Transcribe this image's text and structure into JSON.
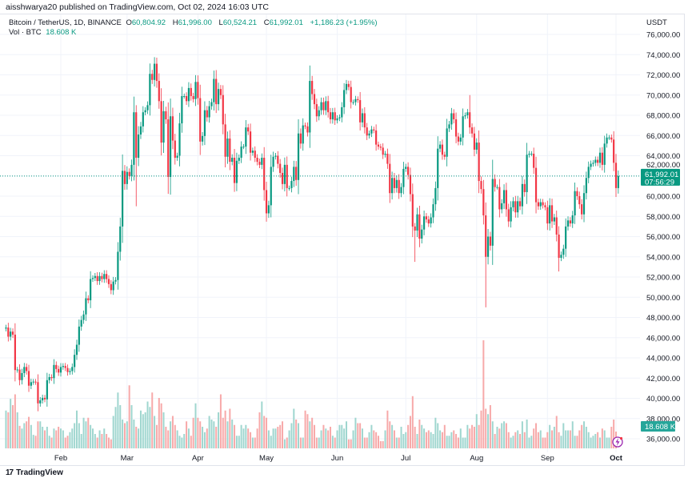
{
  "publisher_line": "aisshwarya20 published on TradingView.com, Oct 02, 2024 16:03 UTC",
  "legend": {
    "symbol": "Bitcoin / TetherUS, 1D, BINANCE",
    "open_label": "O",
    "open": "60,804.92",
    "high_label": "H",
    "high": "61,996.00",
    "low_label": "L",
    "low": "60,524.21",
    "close_label": "C",
    "close": "61,992.01",
    "change": "+1,186.23 (+1.95%)",
    "vol_label": "Vol · BTC",
    "vol": "18.608 K"
  },
  "brand": "TradingView",
  "colors": {
    "up": "#089981",
    "down": "#f23645",
    "up_vol": "#9fd6cf",
    "down_vol": "#f7a9a9",
    "grid": "#f0f3fa",
    "price_line": "#089981"
  },
  "chart_data": {
    "type": "candlestick",
    "currency": "USDT",
    "ylim": [
      36000,
      76000
    ],
    "y_ticks": [
      "76,000.00",
      "74,000.00",
      "72,000.00",
      "70,000.00",
      "68,000.00",
      "66,000.00",
      "64,000.00",
      "62,000.00",
      "60,000.00",
      "58,000.00",
      "56,000.00",
      "54,000.00",
      "52,000.00",
      "50,000.00",
      "48,000.00",
      "46,000.00",
      "44,000.00",
      "42,000.00",
      "40,000.00",
      "38,000.00",
      "36,000.00"
    ],
    "y_tick_values": [
      76000,
      74000,
      72000,
      70000,
      68000,
      66000,
      64000,
      62000,
      60000,
      58000,
      56000,
      54000,
      52000,
      50000,
      48000,
      46000,
      44000,
      42000,
      40000,
      38000,
      36000
    ],
    "x_ticks": [
      {
        "label": "Feb",
        "date": "2024-02-01"
      },
      {
        "label": "Mar",
        "date": "2024-03-01"
      },
      {
        "label": "Apr",
        "date": "2024-04-01"
      },
      {
        "label": "May",
        "date": "2024-05-01"
      },
      {
        "label": "Jun",
        "date": "2024-06-01"
      },
      {
        "label": "Jul",
        "date": "2024-07-01"
      },
      {
        "label": "Aug",
        "date": "2024-08-01"
      },
      {
        "label": "Sep",
        "date": "2024-09-01"
      },
      {
        "label": "Oct",
        "date": "2024-10-01"
      }
    ],
    "start_date": "2024-01-08",
    "first_open": 46900,
    "closes": [
      47000,
      46100,
      46600,
      46300,
      42800,
      42850,
      41800,
      42500,
      43100,
      42700,
      41250,
      41600,
      41650,
      41600,
      39500,
      39800,
      40050,
      39900,
      41800,
      42100,
      42000,
      43300,
      42900,
      42550,
      43100,
      43200,
      43000,
      42600,
      42700,
      43100,
      44300,
      45300,
      47100,
      47750,
      48300,
      49900,
      49700,
      51800,
      51900,
      52100,
      51600,
      52100,
      51800,
      52300,
      51800,
      51300,
      50700,
      51550,
      51700,
      54500,
      57000,
      62500,
      61200,
      62400,
      62000,
      63100,
      68300,
      63800,
      66100,
      66900,
      68300,
      68500,
      69000,
      72100,
      71500,
      73100,
      71400,
      69400,
      65300,
      68400,
      67600,
      61900,
      67900,
      65500,
      63800,
      64000,
      67200,
      69900,
      69900,
      69400,
      70700,
      69900,
      69600,
      71300,
      69700,
      65400,
      65950,
      68500,
      67800,
      68900,
      69300,
      71600,
      69100,
      70600,
      70000,
      67100,
      63900,
      65700,
      63400,
      63800,
      61300,
      63500,
      63800,
      64900,
      64900,
      66800,
      66400,
      64300,
      64500,
      63800,
      63400,
      63100,
      63800,
      60600,
      58300,
      59100,
      62900,
      63900,
      64000,
      63200,
      62300,
      61200,
      63100,
      60800,
      60800,
      61500,
      62900,
      61600,
      66200,
      65200,
      67000,
      66900,
      66300,
      71400,
      70100,
      69100,
      67900,
      68500,
      69300,
      68500,
      69400,
      68300,
      67600,
      68300,
      67500,
      67700,
      67800,
      68800,
      70500,
      71100,
      70800,
      69300,
      69300,
      69600,
      69500,
      67300,
      68200,
      66800,
      66000,
      66200,
      66600,
      66500,
      65100,
      64900,
      64800,
      64100,
      64200,
      63200,
      60300,
      61800,
      60800,
      61600,
      60300,
      60900,
      62700,
      62900,
      62100,
      60200,
      57000,
      56600,
      58200,
      55800,
      56700,
      58000,
      57700,
      57300,
      57900,
      59200,
      60800,
      64700,
      65100,
      64100,
      63900,
      66700,
      67100,
      68200,
      67600,
      65900,
      65400,
      65800,
      67900,
      68000,
      68300,
      66800,
      66200,
      64600,
      65300,
      61500,
      60700,
      58100,
      54000,
      56000,
      55100,
      61700,
      60900,
      60900,
      58700,
      59300,
      60600,
      58700,
      57500,
      58900,
      59500,
      58400,
      59500,
      59000,
      61200,
      60400,
      64100,
      64200,
      64200,
      62800,
      59400,
      59000,
      59400,
      59100,
      58900,
      57300,
      59100,
      57500,
      57900,
      56200,
      53900,
      54200,
      54800,
      57000,
      57600,
      57300,
      58100,
      60500,
      60000,
      59200,
      58200,
      60300,
      61800,
      62900,
      63200,
      63300,
      63600,
      63300,
      64300,
      63100,
      65200,
      65800,
      65800,
      65600,
      63300,
      60800,
      61992.01
    ],
    "notable_extremes": [
      {
        "date": "2024-03-05",
        "low": 59000,
        "high": 69000
      },
      {
        "date": "2024-03-14",
        "high": 73700
      },
      {
        "date": "2024-07-05",
        "low": 53500
      },
      {
        "date": "2024-08-05",
        "low": 49000
      },
      {
        "date": "2024-09-06",
        "low": 52550
      },
      {
        "date": "2024-05-21",
        "high": 71900
      },
      {
        "date": "2024-07-29",
        "high": 70000
      }
    ],
    "volume_unit": "K BTC",
    "volumes": [
      42,
      40,
      55,
      48,
      60,
      40,
      25,
      22,
      28,
      30,
      35,
      26,
      15,
      14,
      30,
      30,
      24,
      20,
      24,
      14,
      12,
      22,
      20,
      24,
      22,
      20,
      12,
      14,
      18,
      22,
      28,
      42,
      28,
      16,
      34,
      30,
      34,
      26,
      22,
      16,
      12,
      20,
      16,
      22,
      16,
      12,
      10,
      36,
      46,
      62,
      48,
      32,
      28,
      30,
      70,
      48,
      32,
      24,
      22,
      42,
      38,
      40,
      52,
      46,
      62,
      36,
      26,
      56,
      50,
      40,
      24,
      20,
      30,
      36,
      26,
      20,
      14,
      12,
      16,
      30,
      22,
      14,
      34,
      50,
      34,
      30,
      24,
      18,
      22,
      36,
      32,
      30,
      24,
      40,
      60,
      34,
      42,
      30,
      44,
      32,
      26,
      14,
      14,
      26,
      22,
      26,
      22,
      18,
      12,
      12,
      22,
      40,
      52,
      36,
      34,
      20,
      14,
      22,
      22,
      24,
      26,
      30,
      10,
      12,
      20,
      28,
      44,
      32,
      28,
      12,
      12,
      42,
      38,
      30,
      34,
      26,
      12,
      12,
      20,
      26,
      22,
      20,
      24,
      14,
      12,
      20,
      26,
      26,
      22,
      30,
      10,
      10,
      20,
      34,
      28,
      28,
      22,
      12,
      12,
      18,
      26,
      20,
      18,
      14,
      8,
      8,
      20,
      42,
      30,
      26,
      20,
      12,
      12,
      24,
      16,
      18,
      26,
      36,
      58,
      24,
      16,
      32,
      26,
      22,
      18,
      20,
      18,
      16,
      34,
      28,
      20,
      18,
      26,
      14,
      14,
      18,
      20,
      16,
      12,
      22,
      12,
      12,
      26,
      22,
      26,
      24,
      38,
      26,
      42,
      120,
      44,
      38,
      48,
      30,
      16,
      24,
      22,
      28,
      30,
      28,
      18,
      12,
      14,
      18,
      20,
      16,
      30,
      18,
      32,
      12,
      14,
      22,
      28,
      18,
      20,
      12,
      12,
      18,
      26,
      20,
      24,
      36,
      18,
      14,
      28,
      20,
      20,
      20,
      30,
      14,
      14,
      20,
      26,
      30,
      24,
      18,
      12,
      14,
      16,
      18,
      12,
      22,
      20,
      12,
      12,
      24,
      32,
      18.608
    ],
    "volume_ylim": [
      0,
      480
    ],
    "last_price_label": "61,992.01",
    "countdown": "07:56:29",
    "last_volume_label": "18.608 K"
  }
}
